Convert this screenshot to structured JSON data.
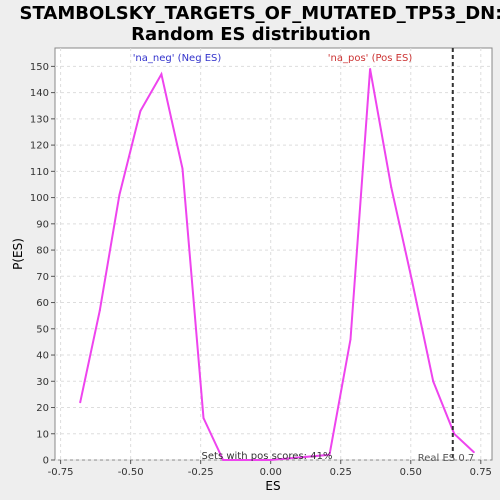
{
  "chart_data": {
    "type": "line",
    "title_lines": [
      "STAMBOLSKY_TARGETS_OF_MUTATED_TP53_DN:",
      "Random ES distribution"
    ],
    "xlabel": "ES",
    "ylabel": "P(ES)",
    "xlim": [
      -0.77,
      0.79
    ],
    "ylim": [
      0,
      157
    ],
    "x_ticks": [
      -0.75,
      -0.5,
      -0.25,
      0.0,
      0.25,
      0.5,
      0.75
    ],
    "x_tick_labels": [
      "-0.75",
      "-0.50",
      "-0.25",
      "0.00",
      "0.25",
      "0.50",
      "0.75"
    ],
    "y_ticks": [
      0,
      10,
      20,
      30,
      40,
      50,
      60,
      70,
      80,
      90,
      100,
      110,
      120,
      130,
      140,
      150
    ],
    "y_tick_labels": [
      "0",
      "10",
      "20",
      "30",
      "40",
      "50",
      "60",
      "70",
      "80",
      "90",
      "100",
      "110",
      "120",
      "130",
      "140",
      "150"
    ],
    "grid": true,
    "series": [
      {
        "color": "#ee44ee",
        "x": [
          -0.68,
          -0.61,
          -0.54,
          -0.465,
          -0.39,
          -0.315,
          -0.24,
          -0.17,
          0.0,
          0.21,
          0.285,
          0.355,
          0.43,
          0.505,
          0.58,
          0.655,
          0.725
        ],
        "y": [
          22,
          57,
          101,
          133,
          147,
          111,
          16,
          0,
          0,
          2,
          46,
          149,
          104,
          68,
          30,
          10,
          3
        ]
      }
    ],
    "real_es": 0.65,
    "annotations": {
      "neg_label": "'na_neg' (Neg ES)",
      "pos_label": "'na_pos' (Pos ES)",
      "sets_label": "Sets with pos scores: 41%",
      "real_es_label": "Real ES 0.7"
    },
    "colors": {
      "neg": "#3333cc",
      "pos": "#cc3333",
      "line": "#ee44ee"
    }
  }
}
